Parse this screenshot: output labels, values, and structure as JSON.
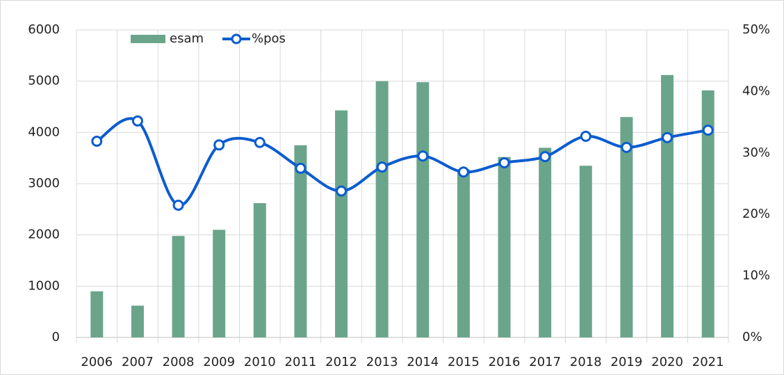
{
  "chart_data": {
    "type": "bar_line",
    "categories": [
      "2006",
      "2007",
      "2008",
      "2009",
      "2010",
      "2011",
      "2012",
      "2013",
      "2014",
      "2015",
      "2016",
      "2017",
      "2018",
      "2019",
      "2020",
      "2021"
    ],
    "series": [
      {
        "name": "esam",
        "type": "bar",
        "color": "#6aa58b",
        "values": [
          900,
          620,
          1980,
          2100,
          2620,
          3750,
          4430,
          5000,
          4980,
          3280,
          3520,
          3700,
          3350,
          4300,
          5120,
          4820
        ]
      },
      {
        "name": "%pos",
        "type": "line",
        "axis": "y2",
        "color": "#0b5ccf",
        "values": [
          31.9,
          35.2,
          21.5,
          31.3,
          31.7,
          27.5,
          23.8,
          27.7,
          29.5,
          26.9,
          28.4,
          29.4,
          32.7,
          30.9,
          32.5,
          33.7
        ]
      }
    ],
    "ylim": [
      0,
      6000
    ],
    "yticks": [
      0,
      1000,
      2000,
      3000,
      4000,
      5000,
      6000
    ],
    "y2lim": [
      0,
      50
    ],
    "y2ticks": [
      {
        "value": 0,
        "label": "0%"
      },
      {
        "value": 10,
        "label": "10%"
      },
      {
        "value": 20,
        "label": "20%"
      },
      {
        "value": 30,
        "label": "30%"
      },
      {
        "value": 40,
        "label": "40%"
      },
      {
        "value": 50,
        "label": "50%"
      }
    ],
    "grid": true,
    "legend": "top-left"
  }
}
